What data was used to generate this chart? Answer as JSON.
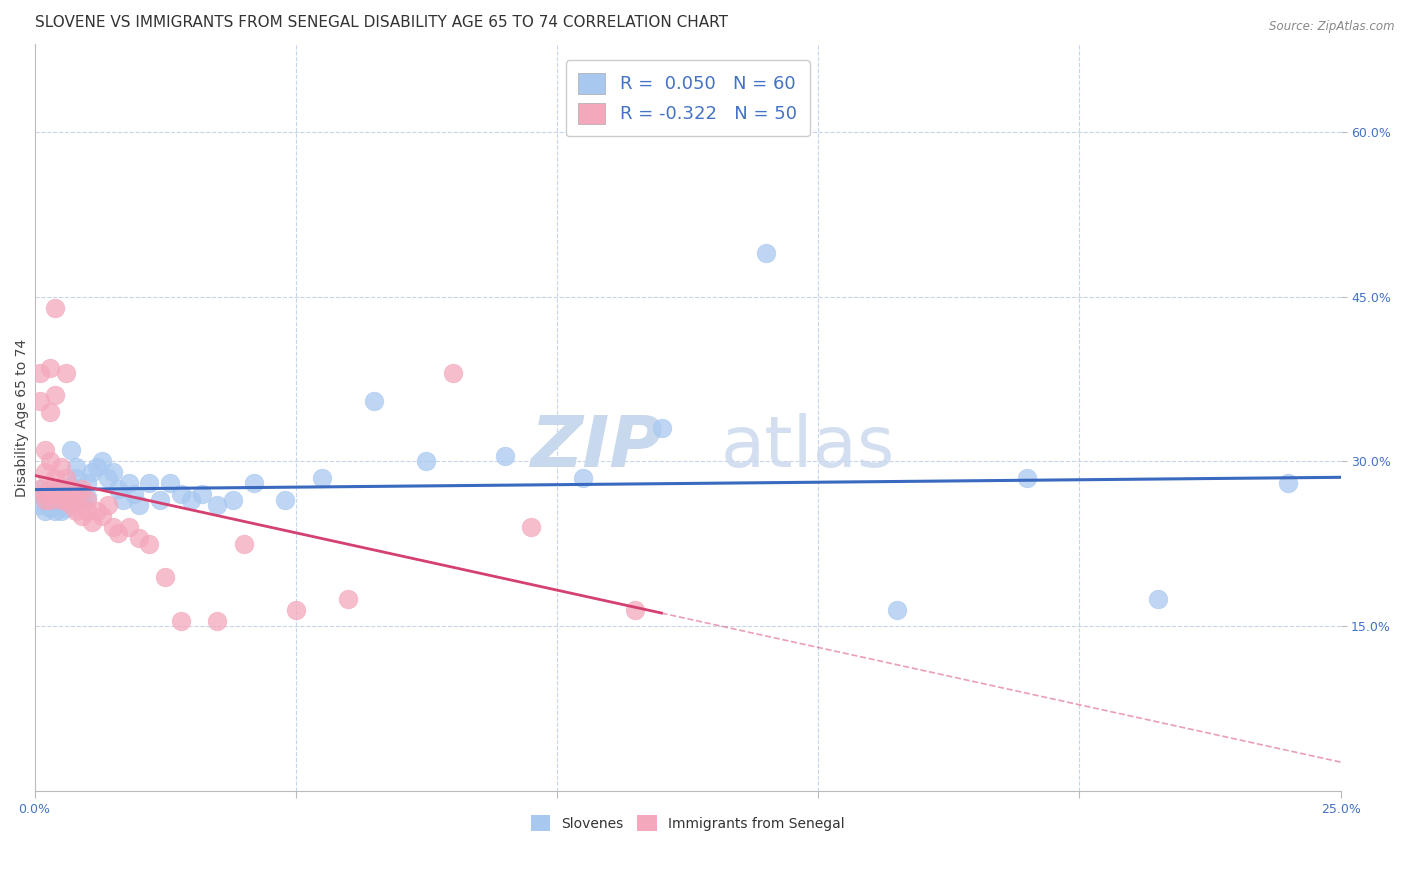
{
  "title": "SLOVENE VS IMMIGRANTS FROM SENEGAL DISABILITY AGE 65 TO 74 CORRELATION CHART",
  "source": "Source: ZipAtlas.com",
  "ylabel": "Disability Age 65 to 74",
  "xlim": [
    0.0,
    0.25
  ],
  "ylim": [
    0.0,
    0.68
  ],
  "yticks_right": [
    0.15,
    0.3,
    0.45,
    0.6
  ],
  "ytick_right_labels": [
    "15.0%",
    "30.0%",
    "45.0%",
    "60.0%"
  ],
  "slovene_color": "#a8c8f0",
  "senegal_color": "#f4a8bc",
  "trend_slovene_color": "#3a6abf",
  "trend_senegal_color": "#d44070",
  "R_slovene": 0.05,
  "N_slovene": 60,
  "R_senegal": -0.322,
  "N_senegal": 50,
  "background_color": "#ffffff",
  "grid_color": "#c8d4e8",
  "title_fontsize": 11,
  "axis_label_fontsize": 10,
  "tick_label_fontsize": 9,
  "legend_fontsize": 13,
  "slovenes_x": [
    0.001,
    0.001,
    0.002,
    0.002,
    0.002,
    0.003,
    0.003,
    0.003,
    0.003,
    0.004,
    0.004,
    0.004,
    0.004,
    0.005,
    0.005,
    0.005,
    0.005,
    0.005,
    0.006,
    0.006,
    0.006,
    0.007,
    0.007,
    0.007,
    0.008,
    0.008,
    0.009,
    0.01,
    0.01,
    0.011,
    0.012,
    0.013,
    0.014,
    0.015,
    0.016,
    0.017,
    0.018,
    0.019,
    0.02,
    0.022,
    0.024,
    0.026,
    0.028,
    0.03,
    0.032,
    0.035,
    0.038,
    0.042,
    0.048,
    0.055,
    0.065,
    0.075,
    0.09,
    0.105,
    0.12,
    0.14,
    0.165,
    0.19,
    0.215,
    0.24
  ],
  "slovenes_y": [
    0.275,
    0.26,
    0.27,
    0.255,
    0.265,
    0.268,
    0.26,
    0.272,
    0.258,
    0.265,
    0.27,
    0.26,
    0.255,
    0.268,
    0.275,
    0.26,
    0.255,
    0.262,
    0.27,
    0.265,
    0.258,
    0.31,
    0.265,
    0.278,
    0.285,
    0.295,
    0.265,
    0.28,
    0.268,
    0.29,
    0.295,
    0.3,
    0.285,
    0.29,
    0.275,
    0.265,
    0.28,
    0.27,
    0.26,
    0.28,
    0.265,
    0.28,
    0.27,
    0.265,
    0.27,
    0.26,
    0.265,
    0.28,
    0.265,
    0.285,
    0.355,
    0.3,
    0.305,
    0.285,
    0.33,
    0.49,
    0.165,
    0.285,
    0.175,
    0.28
  ],
  "senegal_x": [
    0.001,
    0.001,
    0.001,
    0.002,
    0.002,
    0.002,
    0.002,
    0.003,
    0.003,
    0.003,
    0.003,
    0.003,
    0.004,
    0.004,
    0.004,
    0.004,
    0.005,
    0.005,
    0.005,
    0.006,
    0.006,
    0.006,
    0.007,
    0.007,
    0.007,
    0.008,
    0.008,
    0.008,
    0.009,
    0.009,
    0.01,
    0.01,
    0.011,
    0.012,
    0.013,
    0.014,
    0.015,
    0.016,
    0.018,
    0.02,
    0.022,
    0.025,
    0.028,
    0.035,
    0.04,
    0.05,
    0.06,
    0.08,
    0.095,
    0.115
  ],
  "senegal_y": [
    0.275,
    0.355,
    0.38,
    0.29,
    0.31,
    0.27,
    0.265,
    0.3,
    0.275,
    0.345,
    0.385,
    0.265,
    0.27,
    0.36,
    0.285,
    0.44,
    0.27,
    0.265,
    0.295,
    0.265,
    0.38,
    0.285,
    0.26,
    0.275,
    0.265,
    0.27,
    0.255,
    0.265,
    0.275,
    0.25,
    0.265,
    0.255,
    0.245,
    0.255,
    0.25,
    0.26,
    0.24,
    0.235,
    0.24,
    0.23,
    0.225,
    0.195,
    0.155,
    0.155,
    0.225,
    0.165,
    0.175,
    0.38,
    0.24,
    0.165
  ],
  "trend_senegal_solid_end_x": 0.12,
  "watermark_zip_color": "#c8d8ed",
  "watermark_atlas_color": "#c8d8ed"
}
